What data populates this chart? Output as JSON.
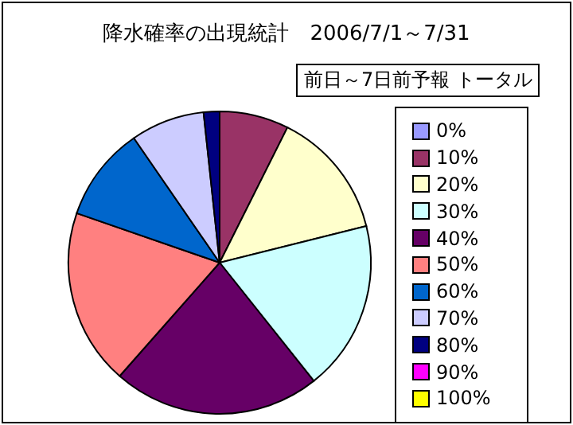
{
  "chart_data": {
    "type": "pie",
    "title": "降水確率の出現統計　2006/7/1～7/31",
    "subtitle": "前日～7日前予報 トータル",
    "categories": [
      "0%",
      "10%",
      "20%",
      "30%",
      "40%",
      "50%",
      "60%",
      "70%",
      "80%",
      "90%",
      "100%"
    ],
    "values": [
      0,
      7.4,
      13.7,
      18.2,
      22.2,
      18.8,
      10.1,
      7.9,
      1.7,
      0,
      0
    ],
    "colors": [
      "#9999ff",
      "#993366",
      "#ffffcc",
      "#ccffff",
      "#660066",
      "#ff8080",
      "#0066cc",
      "#ccccff",
      "#000080",
      "#ff00ff",
      "#ffff00"
    ],
    "legend": "right"
  }
}
